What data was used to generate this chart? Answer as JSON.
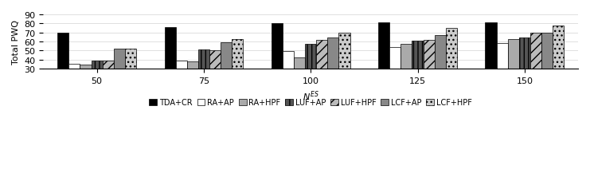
{
  "groups": [
    50,
    75,
    100,
    125,
    150
  ],
  "series": {
    "TDA+CR": [
      70,
      76,
      80,
      81,
      81
    ],
    "RA+AP": [
      35,
      39,
      49,
      54,
      58
    ],
    "RA+HPF": [
      34,
      38,
      42,
      57,
      63
    ],
    "LUF+AP": [
      39,
      51,
      57,
      61,
      64
    ],
    "LUF+HPF": [
      39,
      50,
      62,
      62,
      70
    ],
    "LCF+AP": [
      52,
      59,
      64,
      67,
      70
    ],
    "LCF+HPF": [
      52,
      63,
      70,
      75,
      78
    ]
  },
  "color_map": {
    "TDA+CR": "#000000",
    "RA+AP": "#ffffff",
    "RA+HPF": "#aaaaaa",
    "LUF+AP": "#555555",
    "LUF+HPF": "#bbbbbb",
    "LCF+AP": "#888888",
    "LCF+HPF": "#cccccc"
  },
  "hatch_map": {
    "TDA+CR": "",
    "RA+AP": "",
    "RA+HPF": "",
    "LUF+AP": "|||",
    "LUF+HPF": "///",
    "LCF+AP": "===",
    "LCF+HPF": "..."
  },
  "ylabel": "Total PWQ",
  "ylim": [
    30,
    90
  ],
  "yticks": [
    30,
    40,
    50,
    60,
    70,
    80,
    90
  ],
  "bar_width": 0.105,
  "group_positions": [
    0,
    1,
    2,
    3,
    4
  ]
}
